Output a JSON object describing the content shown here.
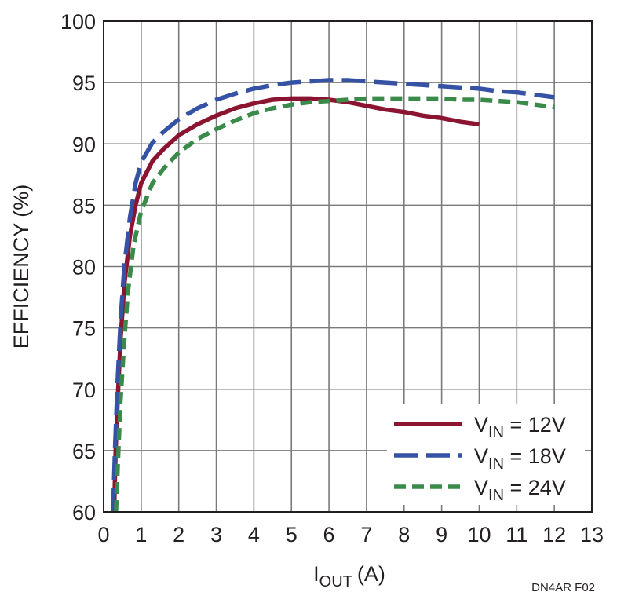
{
  "chart_data": {
    "type": "line",
    "title": "",
    "xlabel": "I",
    "xlabel_sub": "OUT",
    "xlabel_unit": "(A)",
    "ylabel": "EFFICIENCY (%)",
    "xlim": [
      0,
      13
    ],
    "ylim": [
      60,
      100
    ],
    "x_ticks": [
      "0",
      "1",
      "2",
      "3",
      "4",
      "5",
      "6",
      "7",
      "8",
      "9",
      "10",
      "11",
      "12",
      "13"
    ],
    "y_ticks": [
      "60",
      "65",
      "70",
      "75",
      "80",
      "85",
      "90",
      "95",
      "100"
    ],
    "grid": true,
    "legend_position": "bottom-right",
    "series": [
      {
        "name": "12V",
        "legend": {
          "prefix": "V",
          "sub": "IN",
          "suffix": " = 12V"
        },
        "color": "#8b1530",
        "style": "solid",
        "x": [
          0.28,
          0.32,
          0.38,
          0.45,
          0.55,
          0.7,
          0.85,
          1.0,
          1.3,
          1.6,
          2.0,
          2.5,
          3.0,
          3.5,
          4.0,
          4.5,
          5.0,
          5.5,
          6.0,
          6.5,
          7.0,
          7.5,
          8.0,
          8.5,
          9.0,
          9.5,
          10.0
        ],
        "y": [
          60.0,
          65.0,
          69.5,
          74.0,
          78.5,
          82.5,
          85.0,
          86.8,
          88.6,
          89.6,
          90.7,
          91.6,
          92.3,
          92.9,
          93.3,
          93.6,
          93.7,
          93.7,
          93.6,
          93.4,
          93.1,
          92.8,
          92.6,
          92.3,
          92.1,
          91.8,
          91.6
        ]
      },
      {
        "name": "18V",
        "legend": {
          "prefix": "V",
          "sub": "IN",
          "suffix": " = 18V"
        },
        "color": "#3552a4",
        "style": "dashed",
        "x": [
          0.25,
          0.3,
          0.37,
          0.45,
          0.55,
          0.7,
          0.85,
          1.0,
          1.3,
          1.6,
          2.0,
          2.5,
          3.0,
          3.5,
          4.0,
          4.5,
          5.0,
          5.5,
          6.0,
          6.5,
          7.0,
          7.5,
          8.0,
          8.5,
          9.0,
          9.5,
          10.0,
          10.5,
          11.0,
          11.5,
          12.0
        ],
        "y": [
          60.0,
          65.0,
          70.5,
          75.5,
          80.0,
          84.0,
          86.8,
          88.5,
          90.1,
          91.0,
          92.0,
          92.9,
          93.6,
          94.1,
          94.5,
          94.8,
          95.0,
          95.1,
          95.2,
          95.2,
          95.1,
          95.0,
          94.9,
          94.8,
          94.7,
          94.6,
          94.5,
          94.3,
          94.2,
          94.0,
          93.8
        ]
      },
      {
        "name": "24V",
        "legend": {
          "prefix": "V",
          "sub": "IN",
          "suffix": " = 24V"
        },
        "color": "#3a8a4a",
        "style": "dotted",
        "x": [
          0.33,
          0.38,
          0.45,
          0.55,
          0.65,
          0.8,
          1.0,
          1.3,
          1.6,
          2.0,
          2.5,
          3.0,
          3.5,
          4.0,
          4.5,
          5.0,
          5.5,
          6.0,
          6.5,
          7.0,
          7.5,
          8.0,
          8.5,
          9.0,
          9.5,
          10.0,
          10.5,
          11.0,
          11.5,
          12.0
        ],
        "y": [
          60.0,
          64.0,
          69.0,
          74.0,
          78.0,
          81.8,
          84.5,
          86.8,
          88.0,
          89.3,
          90.4,
          91.2,
          91.9,
          92.5,
          92.9,
          93.2,
          93.4,
          93.5,
          93.6,
          93.7,
          93.7,
          93.7,
          93.7,
          93.7,
          93.6,
          93.6,
          93.5,
          93.4,
          93.2,
          93.0
        ]
      }
    ],
    "figure_id": "DN4AR F02"
  }
}
